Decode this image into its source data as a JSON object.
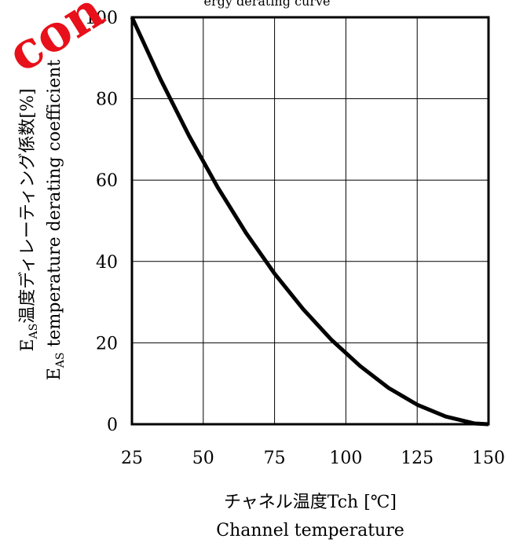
{
  "watermark": {
    "text": "con",
    "color": "#e8101a"
  },
  "title_fragment": "ergy derating curve",
  "chart_data": {
    "type": "line",
    "title": "",
    "x": [
      25,
      35,
      45,
      55,
      65,
      75,
      85,
      95,
      105,
      115,
      125,
      135,
      145,
      150
    ],
    "series": [
      {
        "values": [
          100,
          84.8,
          70.9,
          58.3,
          47.0,
          37.0,
          28.3,
          20.7,
          14.3,
          8.9,
          4.8,
          1.9,
          0.2,
          0.0
        ]
      }
    ],
    "xlim": [
      25,
      150
    ],
    "ylim": [
      0,
      100
    ],
    "x_ticks": [
      "25",
      "50",
      "75",
      "100",
      "125",
      "150"
    ],
    "y_ticks": [
      "0",
      "20",
      "40",
      "60",
      "80",
      "100"
    ],
    "grid": true,
    "xlabel_line1": "チャネル温度Tch [℃]",
    "xlabel_line2": "Channel temperature",
    "ylabel_line1": {
      "main": "E",
      "sub": "AS",
      "rest": "温度ディレーティング係数[%]"
    },
    "ylabel_line2": {
      "main": "E",
      "sub": "AS",
      "rest": " temperature derating coefficient"
    },
    "line_color": "#000000"
  }
}
